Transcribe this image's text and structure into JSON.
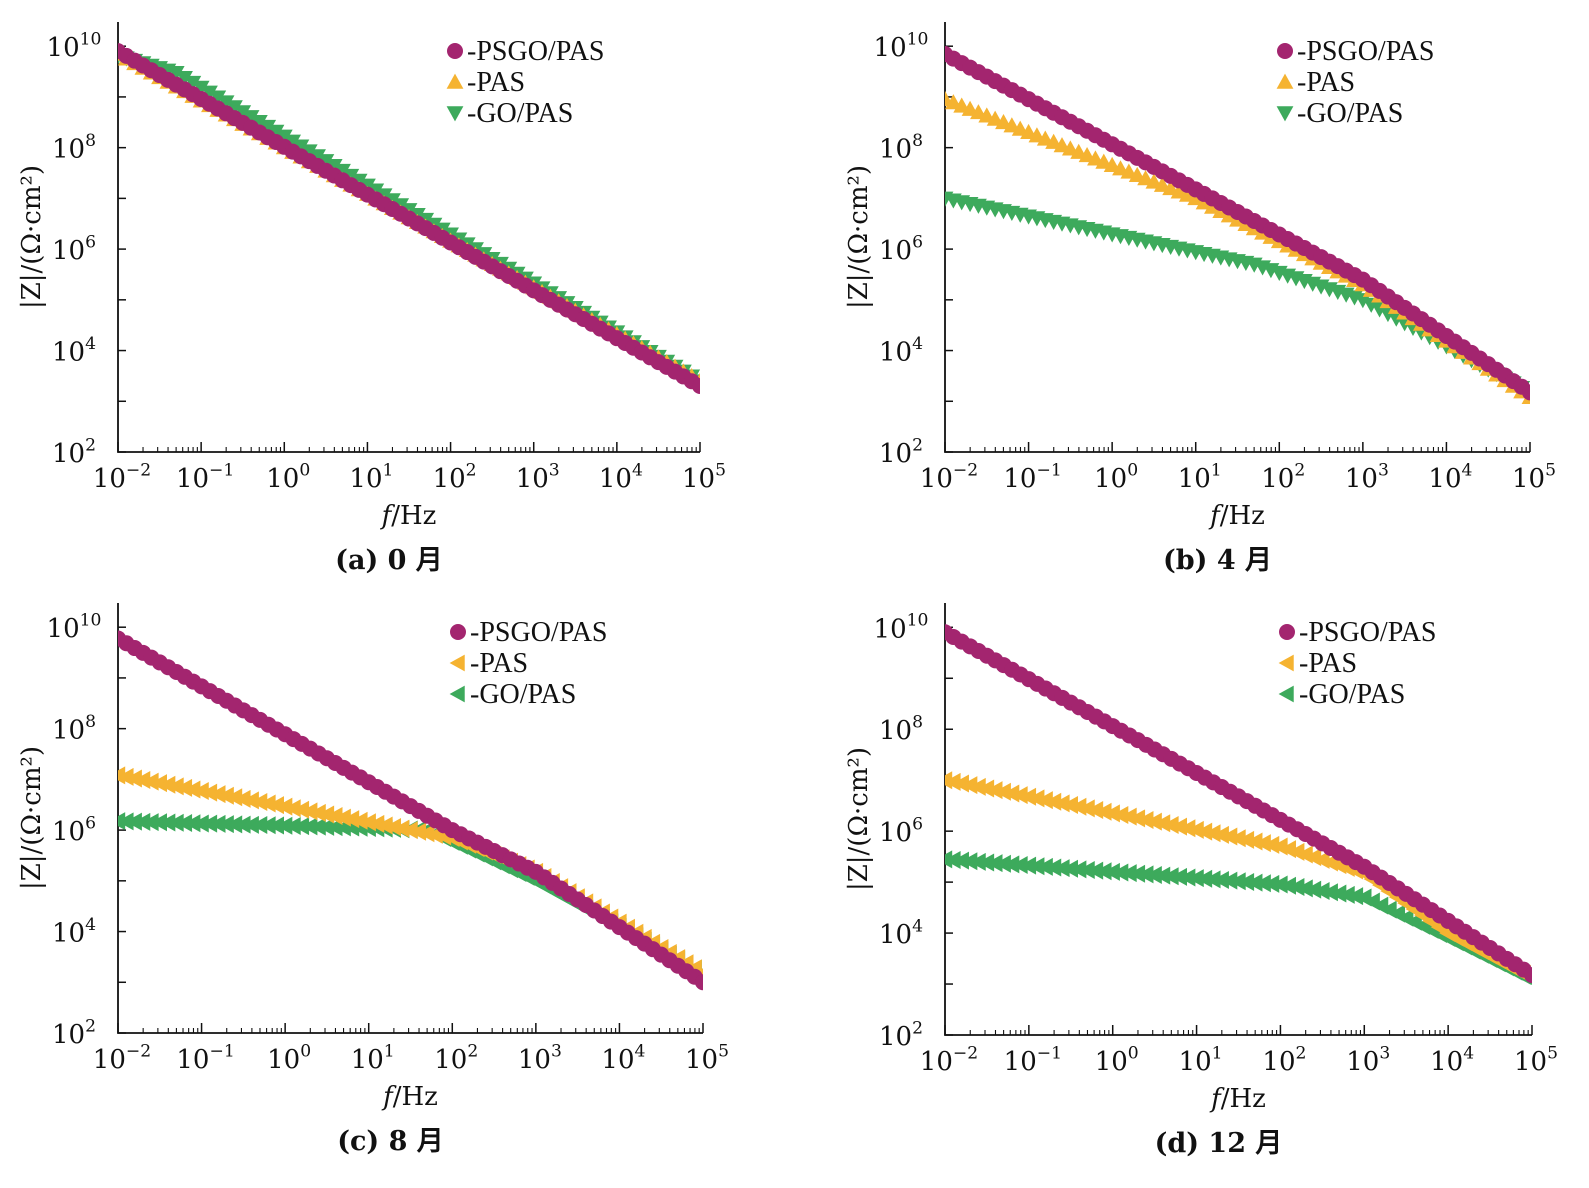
{
  "colors": {
    "PSGO/PAS": "#a3256f",
    "PAS": "#f5b331",
    "GO/PAS": "#3daa5c"
  },
  "marker_icons": {
    "PSGO/PAS": "filled-circle-marker",
    "PAS (a)": "up-triangle-marker",
    "GO/PAS (a)": "down-triangle-marker",
    "PAS (b)": "up-triangle-marker",
    "GO/PAS (b)": "down-triangle-marker",
    "PAS (c,d)": "left-triangle-marker",
    "GO/PAS (c,d)": "left-triangle-marker"
  },
  "chart_data": [
    {
      "type": "line",
      "caption": "(a) 0 月",
      "xlabel_italic": "f",
      "xlabel_rest": "/Hz",
      "ylabel": "|Z|/(Ω·cm²)",
      "xscale": "log",
      "yscale": "log",
      "xlim": [
        0.01,
        100000
      ],
      "ylim": [
        100,
        30000000000
      ],
      "legend_position": "top-right",
      "series": [
        {
          "name": "-PSGO/PAS",
          "marker": "circle",
          "x": [
            0.01,
            100000
          ],
          "y": [
            8000000000,
            2000
          ]
        },
        {
          "name": "-PAS",
          "marker": "triangle-up",
          "x": [
            0.01,
            100000
          ],
          "y": [
            7000000000,
            2500
          ]
        },
        {
          "name": "-GO/PAS",
          "marker": "triangle-down",
          "x": [
            0.01,
            0.05,
            100000
          ],
          "y": [
            6500000000,
            3000000000,
            2500
          ]
        }
      ]
    },
    {
      "type": "line",
      "caption": "(b) 4 月",
      "xlabel_italic": "f",
      "xlabel_rest": "/Hz",
      "ylabel": "|Z|/(Ω·cm²)",
      "xscale": "log",
      "yscale": "log",
      "xlim": [
        0.01,
        100000
      ],
      "ylim": [
        100,
        30000000000
      ],
      "legend_position": "top-right",
      "series": [
        {
          "name": "-PSGO/PAS",
          "marker": "circle",
          "x": [
            0.01,
            1000,
            100000
          ],
          "y": [
            7000000000,
            250000,
            1500
          ]
        },
        {
          "name": "-PAS",
          "marker": "triangle-up",
          "x": [
            0.01,
            10,
            1000,
            100000
          ],
          "y": [
            900000000,
            10000000,
            200000,
            1200
          ]
        },
        {
          "name": "-GO/PAS",
          "marker": "triangle-down",
          "x": [
            0.01,
            50,
            1000,
            100000
          ],
          "y": [
            10000000,
            500000,
            100000,
            1500
          ]
        }
      ]
    },
    {
      "type": "line",
      "caption": "(c) 8 月",
      "xlabel_italic": "f",
      "xlabel_rest": "/Hz",
      "ylabel": "|Z|/(Ω·cm²)",
      "xscale": "log",
      "yscale": "log",
      "xlim": [
        0.01,
        100000
      ],
      "ylim": [
        100,
        30000000000
      ],
      "legend_position": "top-right",
      "series": [
        {
          "name": "-PSGO/PAS",
          "marker": "circle",
          "x": [
            0.01,
            100,
            1000,
            100000
          ],
          "y": [
            6000000000,
            1000000,
            150000,
            1000
          ]
        },
        {
          "name": "-PAS",
          "marker": "triangle-left",
          "x": [
            0.01,
            100,
            1000,
            100000
          ],
          "y": [
            12000000,
            700000,
            150000,
            1500
          ]
        },
        {
          "name": "-GO/PAS",
          "marker": "triangle-left",
          "x": [
            0.01,
            10,
            50,
            1000,
            100000
          ],
          "y": [
            1500000,
            1100000,
            1000000,
            100000,
            1500
          ]
        }
      ]
    },
    {
      "type": "line",
      "caption": "(d) 12 月",
      "xlabel_italic": "f",
      "xlabel_rest": "/Hz",
      "ylabel": "|Z|/(Ω·cm²)",
      "xscale": "log",
      "yscale": "log",
      "xlim": [
        0.01,
        100000
      ],
      "ylim": [
        100,
        30000000000
      ],
      "legend_position": "top-right",
      "series": [
        {
          "name": "-PSGO/PAS",
          "marker": "circle",
          "x": [
            0.01,
            1000,
            100000
          ],
          "y": [
            8000000000,
            200000,
            1500
          ]
        },
        {
          "name": "-PAS",
          "marker": "triangle-left",
          "x": [
            0.01,
            100,
            1000,
            10000,
            100000
          ],
          "y": [
            10000000,
            500000,
            150000,
            10000,
            1300
          ]
        },
        {
          "name": "-GO/PAS",
          "marker": "triangle-left",
          "x": [
            0.01,
            100,
            1000,
            10000,
            100000
          ],
          "y": [
            280000,
            90000,
            50000,
            8000,
            1200
          ]
        }
      ]
    }
  ]
}
